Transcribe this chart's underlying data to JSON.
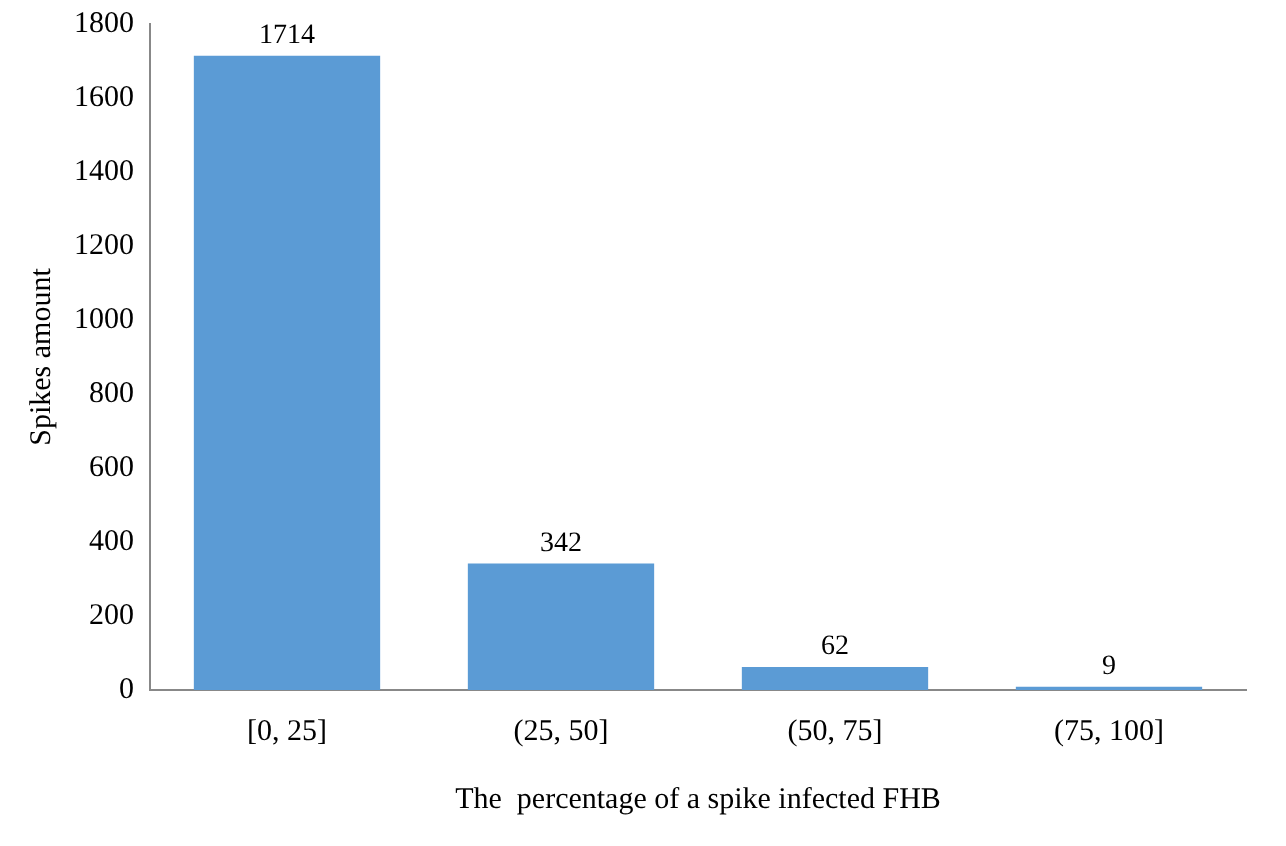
{
  "chart_data": {
    "type": "bar",
    "xlabel": "The  percentage of a spike infected FHB",
    "ylabel": "Spikes amount",
    "categories": [
      "[0, 25]",
      "(25, 50]",
      "(50, 75]",
      "(75, 100]"
    ],
    "values": [
      1714,
      342,
      62,
      9
    ],
    "color": "#5b9bd5",
    "ylim": [
      0,
      1800
    ],
    "yticks": [
      0,
      200,
      400,
      600,
      800,
      1000,
      1200,
      1400,
      1600,
      1800
    ],
    "grid": false,
    "data_labels": true
  }
}
